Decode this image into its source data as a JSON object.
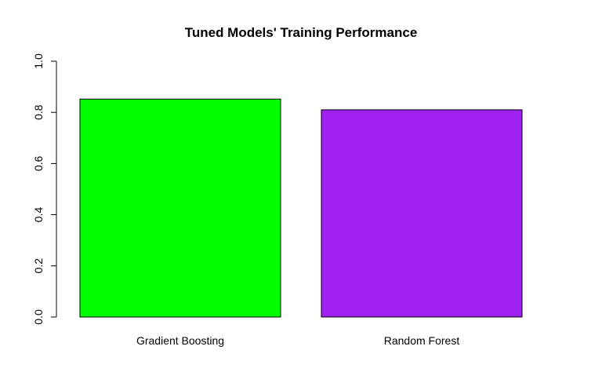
{
  "chart_data": {
    "type": "bar",
    "title": "Tuned Models' Training Performance",
    "xlabel": "",
    "ylabel": "",
    "categories": [
      "Gradient Boosting",
      "Random Forest"
    ],
    "values": [
      0.852,
      0.81
    ],
    "colors": [
      "#00ff00",
      "#a020f0"
    ],
    "ylim": [
      0,
      1
    ],
    "yticks": [
      0,
      0.2,
      0.4,
      0.6,
      0.8,
      1
    ],
    "ytick_labels": [
      "0.0",
      "0.2",
      "0.4",
      "0.6",
      "0.8",
      "1.0"
    ],
    "grid": false,
    "legend": "none"
  }
}
